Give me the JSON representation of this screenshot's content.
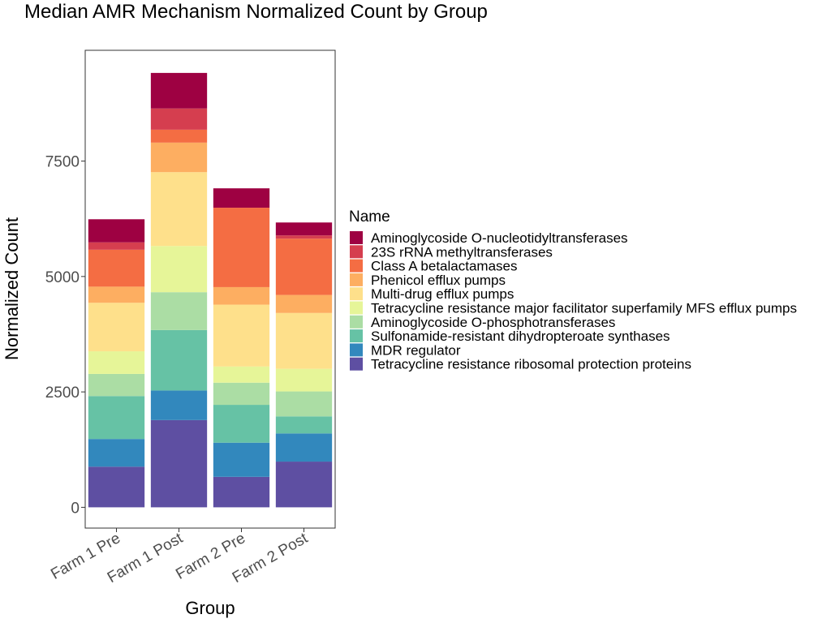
{
  "chart_data": {
    "type": "bar",
    "stacked": true,
    "title": "Median AMR Mechanism Normalized Count by Group",
    "xlabel": "Group",
    "ylabel": "Normalized Count",
    "categories": [
      "Farm 1 Pre",
      "Farm 1 Post",
      "Farm 2 Pre",
      "Farm 2 Post"
    ],
    "yticks": [
      0,
      2500,
      5000,
      7500
    ],
    "ylim": [
      -450,
      9900
    ],
    "grid": false,
    "legend": {
      "title": "Name",
      "position": "right"
    },
    "series": [
      {
        "name": "Tetracycline resistance ribosomal protection proteins",
        "color": "#5E4FA2",
        "values": [
          880,
          1890,
          660,
          990
        ]
      },
      {
        "name": "MDR regulator",
        "color": "#3288BD",
        "values": [
          600,
          640,
          740,
          610
        ]
      },
      {
        "name": "Sulfonamide-resistant dihydropteroate synthases",
        "color": "#66C2A5",
        "values": [
          930,
          1310,
          820,
          370
        ]
      },
      {
        "name": "Aminoglycoside O-phosphotransferases",
        "color": "#ABDDA4",
        "values": [
          480,
          820,
          480,
          540
        ]
      },
      {
        "name": "Tetracycline resistance major facilitator superfamily MFS efflux pumps",
        "color": "#E6F598",
        "values": [
          490,
          1000,
          350,
          490
        ]
      },
      {
        "name": "Multi-drug efflux pumps",
        "color": "#FEE08B",
        "values": [
          1050,
          1600,
          1340,
          1210
        ]
      },
      {
        "name": "Phenicol efflux pumps",
        "color": "#FDAE61",
        "values": [
          350,
          640,
          380,
          390
        ]
      },
      {
        "name": "Class A betalactamases",
        "color": "#F46D43",
        "values": [
          800,
          280,
          1720,
          1220
        ]
      },
      {
        "name": "23S rRNA methyltransferases",
        "color": "#D53E4F",
        "values": [
          160,
          460,
          0,
          70
        ]
      },
      {
        "name": "Aminoglycoside O-nucleotidyltransferases",
        "color": "#9E0142",
        "values": [
          500,
          770,
          420,
          280
        ]
      }
    ]
  }
}
